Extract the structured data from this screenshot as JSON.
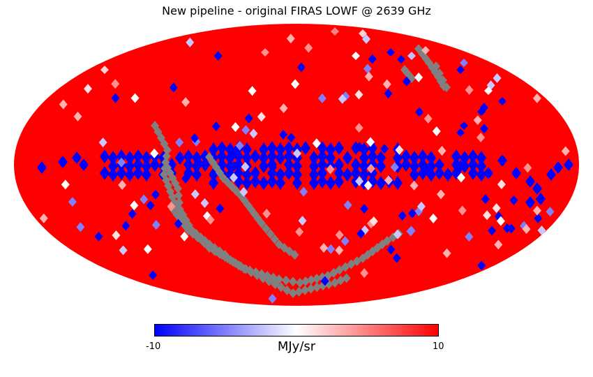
{
  "title": "New pipeline - original FIRAS LOWF @ 2639 GHz",
  "projection": "mollweide",
  "colormap": {
    "name": "bwr",
    "min_label": "-10",
    "max_label": "10",
    "min": -10,
    "max": 10,
    "unit": "MJy/sr",
    "colors": [
      "#0000ff",
      "#ffffff",
      "#ff0000"
    ]
  },
  "colors": {
    "background_pixel": "#ff0000",
    "masked_pixel": "#808080"
  }
}
